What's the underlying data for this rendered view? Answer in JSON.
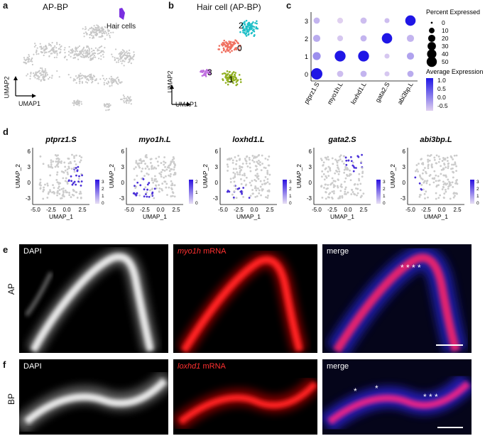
{
  "panels": {
    "a": {
      "label": "a",
      "title": "AP-BP",
      "annotation": "Hair cells",
      "xaxis": "UMAP1",
      "yaxis": "UMAP2"
    },
    "b": {
      "label": "b",
      "title": "Hair cell (AP-BP)",
      "xaxis": "UMAP1",
      "yaxis": "UMAP2",
      "clusters": [
        "0",
        "1",
        "2",
        "3"
      ]
    },
    "c": {
      "label": "c"
    },
    "d": {
      "label": "d"
    },
    "e": {
      "label": "e",
      "row": "AP",
      "channels": [
        {
          "name": "DAPI",
          "gene": "",
          "suffix": ""
        },
        {
          "name": "",
          "gene": "myo1h",
          "suffix": "mRNA"
        },
        {
          "name": "merge",
          "gene": "",
          "suffix": ""
        }
      ],
      "stars": "* * * *"
    },
    "f": {
      "label": "f",
      "row": "BP",
      "channels": [
        {
          "name": "DAPI",
          "gene": "",
          "suffix": ""
        },
        {
          "name": "",
          "gene": "loxhd1",
          "suffix": "mRNA"
        },
        {
          "name": "merge",
          "gene": "",
          "suffix": ""
        }
      ],
      "stars_left": "*",
      "stars_mid": "*",
      "stars_right": "* * *"
    }
  },
  "chart_data": [
    {
      "type": "scatter",
      "kind": "dotplot",
      "genes": [
        "ptprz1.S",
        "myo1h.L",
        "loxhd1.L",
        "gata2.S",
        "abi3bp.L"
      ],
      "clusters": [
        "0",
        "1",
        "2",
        "3"
      ],
      "percent_expressed": [
        [
          50,
          10,
          10,
          5,
          10
        ],
        [
          20,
          45,
          45,
          5,
          15
        ],
        [
          15,
          8,
          10,
          40,
          15
        ],
        [
          10,
          8,
          10,
          5,
          40
        ]
      ],
      "average_expression": [
        [
          1.3,
          -0.5,
          -0.4,
          -0.6,
          -0.3
        ],
        [
          0.0,
          1.3,
          1.3,
          -0.6,
          -0.2
        ],
        [
          -0.3,
          -0.6,
          -0.4,
          1.3,
          -0.4
        ],
        [
          -0.4,
          -0.7,
          -0.5,
          -0.5,
          1.3
        ]
      ],
      "size_legend_title": "Percent Expressed",
      "size_legend": [
        "0",
        "10",
        "20",
        "30",
        "40",
        "50"
      ],
      "color_legend_title": "Average Expression",
      "color_legend": [
        "1.0",
        "0.5",
        "0.0",
        "-0.5"
      ],
      "colors": {
        "high": "#1f16e6",
        "low": "#e0d0f0"
      }
    },
    {
      "type": "scatter",
      "kind": "feature-plots",
      "xlabel": "UMAP_1",
      "ylabel": "UMAP_2",
      "xticks": [
        "-5.0",
        "-2.5",
        "0.0",
        "2.5"
      ],
      "yticks": [
        "6",
        "3",
        "0",
        "-3"
      ],
      "plots": [
        {
          "gene": "ptprz1.S",
          "scale": [
            "3",
            "2",
            "1",
            "0"
          ]
        },
        {
          "gene": "myo1h.L",
          "scale": [
            "2",
            "1",
            "0"
          ]
        },
        {
          "gene": "loxhd1.L",
          "scale": [
            "3",
            "2",
            "1",
            "0"
          ]
        },
        {
          "gene": "gata2.S",
          "scale": [
            "3",
            "2",
            "1",
            "0"
          ]
        },
        {
          "gene": "abi3bp.L",
          "scale": [
            "3",
            "2",
            "1",
            "0"
          ]
        }
      ]
    }
  ]
}
